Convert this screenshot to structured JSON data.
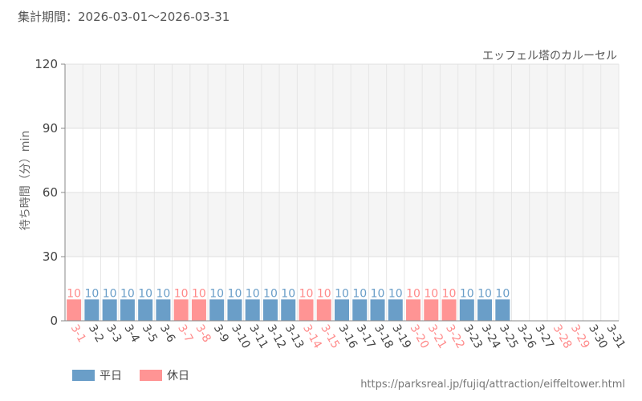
{
  "header": {
    "period": "集計期間：2026-03-01～2026-03-31"
  },
  "footer": {
    "source_url": "https://parksreal.jp/fujiq/attraction/eiffeltower.html"
  },
  "colors": {
    "weekday": "#6a9ec8",
    "holiday": "#ff9494",
    "weekday_label": "#6a9ec8",
    "holiday_label": "#ff8a8a"
  },
  "chart_data": {
    "type": "bar",
    "title": "エッフェル塔のカルーセル",
    "xlabel": "",
    "ylabel": "待ち時間（分）min",
    "ylim": [
      0,
      120
    ],
    "yticks": [
      0,
      30,
      60,
      90,
      120
    ],
    "grid": true,
    "legend": {
      "position": "bottom-left",
      "entries": [
        {
          "name": "平日",
          "key": "weekday"
        },
        {
          "name": "休日",
          "key": "holiday"
        }
      ]
    },
    "categories": [
      "3-1",
      "3-2",
      "3-3",
      "3-4",
      "3-5",
      "3-6",
      "3-7",
      "3-8",
      "3-9",
      "3-10",
      "3-11",
      "3-12",
      "3-13",
      "3-14",
      "3-15",
      "3-16",
      "3-17",
      "3-18",
      "3-19",
      "3-20",
      "3-21",
      "3-22",
      "3-23",
      "3-24",
      "3-25",
      "3-26",
      "3-27",
      "3-28",
      "3-29",
      "3-30",
      "3-31"
    ],
    "values": [
      10,
      10,
      10,
      10,
      10,
      10,
      10,
      10,
      10,
      10,
      10,
      10,
      10,
      10,
      10,
      10,
      10,
      10,
      10,
      10,
      10,
      10,
      10,
      10,
      10,
      null,
      null,
      null,
      null,
      null,
      null
    ],
    "day_type": [
      "holiday",
      "weekday",
      "weekday",
      "weekday",
      "weekday",
      "weekday",
      "holiday",
      "holiday",
      "weekday",
      "weekday",
      "weekday",
      "weekday",
      "weekday",
      "holiday",
      "holiday",
      "weekday",
      "weekday",
      "weekday",
      "weekday",
      "holiday",
      "holiday",
      "holiday",
      "weekday",
      "weekday",
      "weekday",
      "weekday",
      "weekday",
      "holiday",
      "holiday",
      "weekday",
      "weekday"
    ]
  }
}
